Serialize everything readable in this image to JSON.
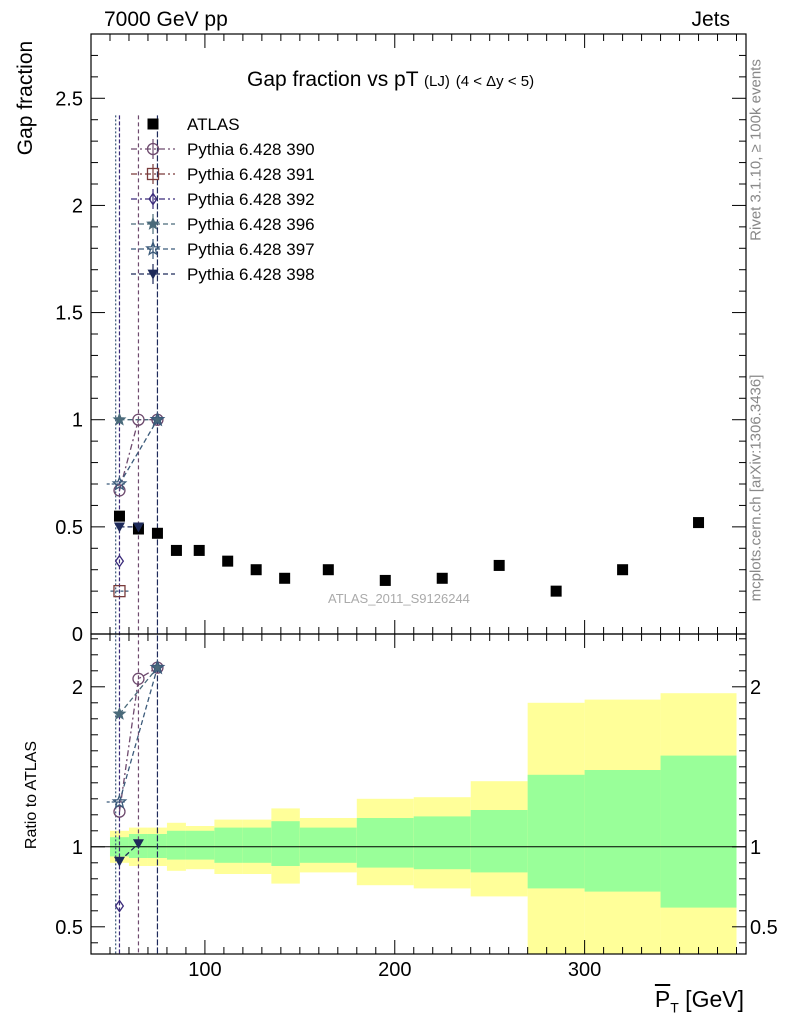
{
  "header": {
    "energy_label": "7000 GeV pp",
    "process_label": "Jets"
  },
  "side_labels": {
    "rivet": "Rivet 3.1.10, ≥ 100k events",
    "mcplots": "mcplots.cern.ch [arXiv:1306.3436]"
  },
  "watermark": "ATLAS_2011_S9126244",
  "colors": {
    "data": "#000000",
    "band_inner": "#99ff99",
    "band_outer": "#ffff99",
    "p390": "#6e4a6e",
    "p391": "#7a3b3b",
    "p392": "#3a2a7a",
    "p396": "#4a6a7a",
    "p397": "#3b5a7a",
    "p398": "#1e2a5a"
  },
  "chart_data": [
    {
      "type": "scatter",
      "title_main": "Gap fraction vs pT",
      "title_sub": "(LJ)",
      "title_range": "(4 < Δy < 5)",
      "title": "Gap fraction vs pT (LJ) (4 < Δy < 5)",
      "xlabel": "P_T [GeV]",
      "ylabel": "Gap fraction",
      "xlim": [
        40,
        385
      ],
      "ylim": [
        0,
        2.8
      ],
      "yticks": [
        "0",
        "0.5",
        "1",
        "1.5",
        "2",
        "2.5"
      ],
      "ytick_values": [
        0,
        0.5,
        1,
        1.5,
        2,
        2.5
      ],
      "legend_position": "top-left",
      "series": [
        {
          "name": "ATLAS",
          "marker": "square-filled",
          "color_key": "data",
          "x": [
            55,
            65,
            75,
            85,
            97,
            112,
            127,
            142,
            165,
            195,
            225,
            255,
            285,
            320,
            360
          ],
          "y": [
            0.55,
            0.49,
            0.47,
            0.39,
            0.39,
            0.34,
            0.3,
            0.26,
            0.3,
            0.25,
            0.26,
            0.32,
            0.2,
            0.3,
            0.52
          ]
        },
        {
          "name": "Pythia 6.428 390",
          "marker": "circle-open",
          "color_key": "p390",
          "dash": "6,3,2,3",
          "x": [
            55,
            65,
            75
          ],
          "y": [
            0.67,
            1.0,
            1.0
          ]
        },
        {
          "name": "Pythia 6.428 391",
          "marker": "square-open",
          "color_key": "p391",
          "dash": "6,3,2,3",
          "x": [
            55
          ],
          "y": [
            0.2
          ]
        },
        {
          "name": "Pythia 6.428 392",
          "marker": "diamond-open",
          "color_key": "p392",
          "dash": "6,3,2,3",
          "x": [
            55
          ],
          "y": [
            0.34
          ]
        },
        {
          "name": "Pythia 6.428 396",
          "marker": "star-filled",
          "color_key": "p396",
          "dash": "5,3",
          "x": [
            55,
            75
          ],
          "y": [
            1.0,
            1.0
          ]
        },
        {
          "name": "Pythia 6.428 397",
          "marker": "star-open",
          "color_key": "p397",
          "dash": "5,3",
          "x": [
            55,
            75
          ],
          "y": [
            0.7,
            1.0
          ]
        },
        {
          "name": "Pythia 6.428 398",
          "marker": "triangle-down-filled",
          "color_key": "p398",
          "dash": "5,3",
          "x": [
            55,
            65
          ],
          "y": [
            0.5,
            0.5
          ]
        }
      ]
    },
    {
      "type": "scatter",
      "xlabel": "P_T [GeV]",
      "ylabel": "Ratio to ATLAS",
      "xlim": [
        40,
        385
      ],
      "ylim": [
        0.33,
        2.33
      ],
      "yticks": [
        "0.5",
        "1",
        "2"
      ],
      "ytick_values": [
        0.5,
        1,
        2
      ],
      "xticks": [
        "100",
        "200",
        "300"
      ],
      "xtick_values": [
        100,
        200,
        300
      ],
      "bands": {
        "edges": [
          50,
          60,
          70,
          80,
          90,
          105,
          120,
          135,
          150,
          180,
          210,
          240,
          270,
          300,
          340,
          380
        ],
        "inner_lo": [
          0.94,
          0.93,
          0.93,
          0.92,
          0.92,
          0.9,
          0.9,
          0.88,
          0.9,
          0.87,
          0.86,
          0.84,
          0.74,
          0.72,
          0.62
        ],
        "inner_hi": [
          1.06,
          1.08,
          1.08,
          1.1,
          1.1,
          1.12,
          1.12,
          1.16,
          1.12,
          1.18,
          1.19,
          1.23,
          1.45,
          1.48,
          1.57
        ],
        "outer_lo": [
          0.9,
          0.88,
          0.88,
          0.85,
          0.86,
          0.83,
          0.83,
          0.77,
          0.84,
          0.76,
          0.74,
          0.69,
          0.33,
          0.33,
          0.33
        ],
        "outer_hi": [
          1.1,
          1.12,
          1.12,
          1.15,
          1.13,
          1.17,
          1.17,
          1.24,
          1.18,
          1.3,
          1.31,
          1.41,
          1.9,
          1.92,
          1.96
        ]
      },
      "series": [
        {
          "name": "Pythia 6.428 390",
          "marker": "circle-open",
          "color_key": "p390",
          "dash": "6,3,2,3",
          "x": [
            55,
            65,
            75
          ],
          "y": [
            1.22,
            2.05,
            2.12
          ]
        },
        {
          "name": "Pythia 6.428 392",
          "marker": "diamond-open",
          "color_key": "p392",
          "dash": "6,3,2,3",
          "x": [
            55
          ],
          "y": [
            0.63
          ]
        },
        {
          "name": "Pythia 6.428 396",
          "marker": "star-filled",
          "color_key": "p396",
          "dash": "5,3",
          "x": [
            55,
            75
          ],
          "y": [
            1.83,
            2.12
          ]
        },
        {
          "name": "Pythia 6.428 397",
          "marker": "star-open",
          "color_key": "p397",
          "dash": "5,3",
          "x": [
            55,
            75
          ],
          "y": [
            1.28,
            2.12
          ]
        },
        {
          "name": "Pythia 6.428 398",
          "marker": "triangle-down-filled",
          "color_key": "p398",
          "dash": "5,3",
          "x": [
            55,
            65
          ],
          "y": [
            0.91,
            1.02
          ]
        }
      ]
    }
  ]
}
